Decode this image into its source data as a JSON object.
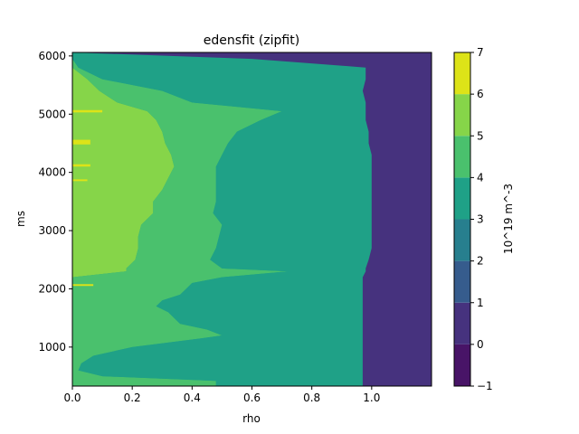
{
  "chart_data": {
    "type": "heatmap",
    "subtype": "filled-contour",
    "title": "edensfit (zipfit)",
    "xlabel": "rho",
    "ylabel": "ms",
    "xlim": [
      0.0,
      1.2
    ],
    "ylim": [
      330,
      6060
    ],
    "x_ticks": [
      0.0,
      0.2,
      0.4,
      0.6,
      0.8,
      1.0
    ],
    "x_tick_labels": [
      "0.0",
      "0.2",
      "0.4",
      "0.6",
      "0.8",
      "1.0"
    ],
    "y_ticks": [
      1000,
      2000,
      3000,
      4000,
      5000,
      6000
    ],
    "y_tick_labels": [
      "1000",
      "2000",
      "3000",
      "4000",
      "5000",
      "6000"
    ],
    "colorbar": {
      "label": "10^19 m^-3",
      "levels": [
        -1,
        0,
        1,
        2,
        3,
        4,
        5,
        6,
        7
      ],
      "level_labels": [
        "−1",
        "0",
        "1",
        "2",
        "3",
        "4",
        "5",
        "6",
        "7"
      ],
      "colors": [
        "#481467",
        "#46327e",
        "#365c8d",
        "#277f8e",
        "#1fa187",
        "#4ac16d",
        "#86d549",
        "#dde318"
      ]
    },
    "profile_rows": [
      {
        "t": 330,
        "b": [
          0.0,
          0.0,
          0.48,
          0.97,
          1.2
        ]
      },
      {
        "t": 420,
        "b": [
          0.0,
          0.0,
          0.48,
          0.97,
          1.2
        ]
      },
      {
        "t": 500,
        "b": [
          0.0,
          0.0,
          0.1,
          0.97,
          1.2
        ]
      },
      {
        "t": 600,
        "b": [
          0.0,
          0.0,
          0.02,
          0.97,
          1.2
        ]
      },
      {
        "t": 720,
        "b": [
          0.0,
          0.0,
          0.03,
          0.97,
          1.2
        ]
      },
      {
        "t": 850,
        "b": [
          0.0,
          0.0,
          0.07,
          0.97,
          1.2
        ]
      },
      {
        "t": 1000,
        "b": [
          0.0,
          0.0,
          0.2,
          0.97,
          1.2
        ]
      },
      {
        "t": 1150,
        "b": [
          0.0,
          0.0,
          0.43,
          0.97,
          1.2
        ]
      },
      {
        "t": 1200,
        "b": [
          0.0,
          0.0,
          0.5,
          0.97,
          1.2
        ]
      },
      {
        "t": 1300,
        "b": [
          0.0,
          0.0,
          0.45,
          0.97,
          1.2
        ]
      },
      {
        "t": 1400,
        "b": [
          0.0,
          0.0,
          0.36,
          0.97,
          1.2
        ]
      },
      {
        "t": 1500,
        "b": [
          0.0,
          0.0,
          0.34,
          0.97,
          1.2
        ]
      },
      {
        "t": 1600,
        "b": [
          0.0,
          0.0,
          0.32,
          0.97,
          1.2
        ]
      },
      {
        "t": 1700,
        "b": [
          0.0,
          0.0,
          0.28,
          0.97,
          1.2
        ]
      },
      {
        "t": 1800,
        "b": [
          0.0,
          0.0,
          0.3,
          0.97,
          1.2
        ]
      },
      {
        "t": 1900,
        "b": [
          0.0,
          0.0,
          0.36,
          0.97,
          1.2
        ]
      },
      {
        "t": 2000,
        "b": [
          0.0,
          0.0,
          0.38,
          0.97,
          1.2
        ]
      },
      {
        "t": 2100,
        "b": [
          0.0,
          0.0,
          0.4,
          0.97,
          1.2
        ]
      },
      {
        "t": 2200,
        "b": [
          0.0,
          0.0,
          0.5,
          0.97,
          1.2
        ]
      },
      {
        "t": 2300,
        "b": [
          0.0,
          0.18,
          0.72,
          0.98,
          1.2
        ]
      },
      {
        "t": 2350,
        "b": [
          0.0,
          0.18,
          0.5,
          0.98,
          1.2
        ]
      },
      {
        "t": 2500,
        "b": [
          0.0,
          0.21,
          0.46,
          0.99,
          1.2
        ]
      },
      {
        "t": 2700,
        "b": [
          0.0,
          0.22,
          0.48,
          1.0,
          1.2
        ]
      },
      {
        "t": 2900,
        "b": [
          0.0,
          0.22,
          0.49,
          1.0,
          1.2
        ]
      },
      {
        "t": 3100,
        "b": [
          0.0,
          0.23,
          0.5,
          1.0,
          1.2
        ]
      },
      {
        "t": 3300,
        "b": [
          0.0,
          0.27,
          0.47,
          1.0,
          1.2
        ]
      },
      {
        "t": 3500,
        "b": [
          0.0,
          0.27,
          0.48,
          1.0,
          1.2
        ]
      },
      {
        "t": 3700,
        "b": [
          0.0,
          0.3,
          0.48,
          1.0,
          1.2
        ]
      },
      {
        "t": 3900,
        "b": [
          0.0,
          0.32,
          0.48,
          1.0,
          1.2
        ]
      },
      {
        "t": 4100,
        "b": [
          0.0,
          0.34,
          0.48,
          1.0,
          1.2
        ]
      },
      {
        "t": 4300,
        "b": [
          0.0,
          0.33,
          0.5,
          1.0,
          1.2
        ]
      },
      {
        "t": 4500,
        "b": [
          0.0,
          0.31,
          0.52,
          0.99,
          1.2
        ]
      },
      {
        "t": 4700,
        "b": [
          0.0,
          0.3,
          0.55,
          0.99,
          1.2
        ]
      },
      {
        "t": 4900,
        "b": [
          0.0,
          0.28,
          0.63,
          0.98,
          1.2
        ]
      },
      {
        "t": 5050,
        "b": [
          0.0,
          0.25,
          0.7,
          0.98,
          1.2
        ]
      },
      {
        "t": 5200,
        "b": [
          0.0,
          0.15,
          0.4,
          0.98,
          1.2
        ]
      },
      {
        "t": 5400,
        "b": [
          0.0,
          0.09,
          0.3,
          0.97,
          1.2
        ]
      },
      {
        "t": 5600,
        "b": [
          0.0,
          0.05,
          0.1,
          0.98,
          1.2
        ]
      },
      {
        "t": 5800,
        "b": [
          0.0,
          0.0,
          0.02,
          0.98,
          1.2
        ]
      },
      {
        "t": 5950,
        "b": [
          0.0,
          0.0,
          0.0,
          0.6,
          1.2
        ]
      },
      {
        "t": 6060,
        "b": [
          0.0,
          0.0,
          0.0,
          0.0,
          1.2
        ]
      }
    ],
    "streaks": [
      {
        "t0": 4480,
        "t1": 4560,
        "x0": 0.0,
        "x1": 0.06,
        "level": 6
      },
      {
        "t0": 5030,
        "t1": 5070,
        "x0": 0.0,
        "x1": 0.1,
        "level": 6
      },
      {
        "t0": 4100,
        "t1": 4140,
        "x0": 0.0,
        "x1": 0.06,
        "level": 6
      },
      {
        "t0": 3850,
        "t1": 3880,
        "x0": 0.0,
        "x1": 0.05,
        "level": 6
      },
      {
        "t0": 2050,
        "t1": 2080,
        "x0": 0.0,
        "x1": 0.07,
        "level": 6
      }
    ]
  }
}
